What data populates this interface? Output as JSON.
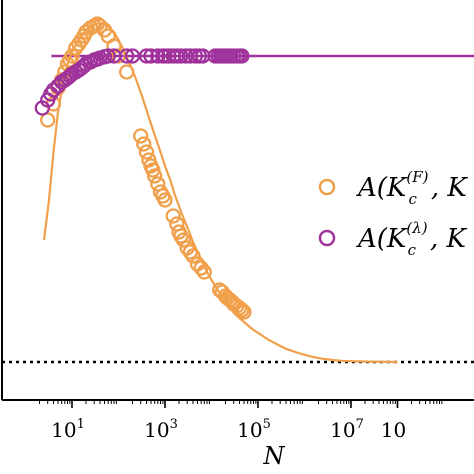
{
  "chart_data": {
    "type": "scatter",
    "x_scale": "log",
    "xlabel": "N",
    "ylabel": "",
    "xlim": [
      1,
      100000000
    ],
    "ylim": [
      0.0,
      1.0
    ],
    "x_ticks": [
      {
        "base": "10",
        "exp": "1",
        "value": 10
      },
      {
        "base": "10",
        "exp": "3",
        "value": 1000
      },
      {
        "base": "10",
        "exp": "5",
        "value": 100000
      },
      {
        "base": "10",
        "exp": "7",
        "value": 10000000
      },
      {
        "base": "10",
        "exp": "",
        "value": 100000000
      }
    ],
    "hline_solid": {
      "y": 0.86,
      "color": "#a0339b"
    },
    "hline_dotted": {
      "y": 0.095,
      "color": "#000000"
    },
    "curve": {
      "color": "#f0a04b",
      "points": [
        [
          2.5,
          0.4
        ],
        [
          3.2,
          0.5
        ],
        [
          4,
          0.62
        ],
        [
          5,
          0.72
        ],
        [
          6.3,
          0.79
        ],
        [
          8,
          0.84
        ],
        [
          10,
          0.87
        ],
        [
          13,
          0.895
        ],
        [
          16,
          0.91
        ],
        [
          20,
          0.925
        ],
        [
          25,
          0.935
        ],
        [
          32,
          0.94
        ],
        [
          40,
          0.942
        ],
        [
          50,
          0.94
        ],
        [
          63,
          0.932
        ],
        [
          80,
          0.92
        ],
        [
          100,
          0.9
        ],
        [
          130,
          0.875
        ],
        [
          160,
          0.85
        ],
        [
          200,
          0.825
        ],
        [
          250,
          0.795
        ],
        [
          320,
          0.76
        ],
        [
          400,
          0.725
        ],
        [
          500,
          0.69
        ],
        [
          630,
          0.655
        ],
        [
          800,
          0.62
        ],
        [
          1000,
          0.585
        ],
        [
          1300,
          0.55
        ],
        [
          1600,
          0.515
        ],
        [
          2000,
          0.485
        ],
        [
          2500,
          0.455
        ],
        [
          3200,
          0.425
        ],
        [
          4000,
          0.395
        ],
        [
          5000,
          0.37
        ],
        [
          6300,
          0.345
        ],
        [
          8000,
          0.32
        ],
        [
          10000,
          0.3
        ],
        [
          13000,
          0.28
        ],
        [
          16000,
          0.26
        ],
        [
          20000,
          0.245
        ],
        [
          25000,
          0.23
        ],
        [
          32000,
          0.215
        ],
        [
          40000,
          0.205
        ],
        [
          50000,
          0.195
        ],
        [
          63000,
          0.185
        ],
        [
          80000,
          0.175
        ],
        [
          100000,
          0.168
        ],
        [
          160000,
          0.152
        ],
        [
          250000,
          0.14
        ],
        [
          400000,
          0.128
        ],
        [
          630000,
          0.12
        ],
        [
          1000000,
          0.113
        ],
        [
          1600000,
          0.107
        ],
        [
          2500000,
          0.103
        ],
        [
          4000000,
          0.1
        ],
        [
          6300000,
          0.098
        ],
        [
          10000000,
          0.097
        ],
        [
          25000000,
          0.096
        ],
        [
          100000000,
          0.095
        ]
      ]
    },
    "series": [
      {
        "label_base": "A(K",
        "label_sub": "c",
        "label_sup": "(F)",
        "label_tail": ", K",
        "color": "#f0a04b",
        "points": [
          [
            3,
            0.7
          ],
          [
            4,
            0.74
          ],
          [
            5,
            0.78
          ],
          [
            6,
            0.8
          ],
          [
            7,
            0.82
          ],
          [
            8,
            0.84
          ],
          [
            9,
            0.85
          ],
          [
            10,
            0.86
          ],
          [
            12,
            0.88
          ],
          [
            14,
            0.89
          ],
          [
            16,
            0.9
          ],
          [
            18,
            0.91
          ],
          [
            20,
            0.92
          ],
          [
            25,
            0.93
          ],
          [
            30,
            0.935
          ],
          [
            35,
            0.94
          ],
          [
            40,
            0.935
          ],
          [
            50,
            0.925
          ],
          [
            60,
            0.91
          ],
          [
            80,
            0.885
          ],
          [
            100,
            0.86
          ],
          [
            150,
            0.82
          ],
          [
            300,
            0.66
          ],
          [
            350,
            0.64
          ],
          [
            400,
            0.62
          ],
          [
            450,
            0.6
          ],
          [
            500,
            0.585
          ],
          [
            550,
            0.575
          ],
          [
            600,
            0.56
          ],
          [
            700,
            0.54
          ],
          [
            800,
            0.52
          ],
          [
            900,
            0.51
          ],
          [
            1000,
            0.5
          ],
          [
            1500,
            0.46
          ],
          [
            1800,
            0.44
          ],
          [
            2000,
            0.42
          ],
          [
            2200,
            0.41
          ],
          [
            2500,
            0.4
          ],
          [
            3000,
            0.38
          ],
          [
            3500,
            0.37
          ],
          [
            4000,
            0.36
          ],
          [
            5000,
            0.34
          ],
          [
            6000,
            0.33
          ],
          [
            7000,
            0.32
          ],
          [
            15000,
            0.275
          ],
          [
            17000,
            0.27
          ],
          [
            20000,
            0.26
          ],
          [
            22000,
            0.255
          ],
          [
            25000,
            0.25
          ],
          [
            28000,
            0.245
          ],
          [
            30000,
            0.24
          ],
          [
            35000,
            0.235
          ],
          [
            40000,
            0.23
          ],
          [
            45000,
            0.225
          ],
          [
            50000,
            0.22
          ]
        ]
      },
      {
        "label_base": "A(K",
        "label_sub": "c",
        "label_sup": "(λ)",
        "label_tail": ", K",
        "color": "#a0339b",
        "points": [
          [
            2.3,
            0.73
          ],
          [
            3,
            0.75
          ],
          [
            3.5,
            0.765
          ],
          [
            4,
            0.775
          ],
          [
            5,
            0.785
          ],
          [
            6,
            0.795
          ],
          [
            7,
            0.8
          ],
          [
            8,
            0.805
          ],
          [
            9,
            0.81
          ],
          [
            10,
            0.815
          ],
          [
            12,
            0.82
          ],
          [
            14,
            0.825
          ],
          [
            16,
            0.83
          ],
          [
            18,
            0.835
          ],
          [
            20,
            0.84
          ],
          [
            25,
            0.845
          ],
          [
            30,
            0.85
          ],
          [
            35,
            0.852
          ],
          [
            40,
            0.855
          ],
          [
            50,
            0.858
          ],
          [
            60,
            0.86
          ],
          [
            80,
            0.86
          ],
          [
            150,
            0.86
          ],
          [
            200,
            0.86
          ],
          [
            400,
            0.86
          ],
          [
            500,
            0.86
          ],
          [
            700,
            0.86
          ],
          [
            900,
            0.86
          ],
          [
            1000,
            0.86
          ],
          [
            1200,
            0.86
          ],
          [
            1500,
            0.86
          ],
          [
            1800,
            0.86
          ],
          [
            2200,
            0.86
          ],
          [
            2800,
            0.86
          ],
          [
            3500,
            0.86
          ],
          [
            4500,
            0.86
          ],
          [
            5500,
            0.86
          ],
          [
            6500,
            0.86
          ],
          [
            12000,
            0.86
          ],
          [
            14000,
            0.86
          ],
          [
            16000,
            0.86
          ],
          [
            18000,
            0.86
          ],
          [
            20000,
            0.86
          ],
          [
            23000,
            0.86
          ],
          [
            26000,
            0.86
          ],
          [
            30000,
            0.86
          ],
          [
            35000,
            0.86
          ],
          [
            40000,
            0.86
          ],
          [
            45000,
            0.86
          ]
        ]
      }
    ]
  }
}
